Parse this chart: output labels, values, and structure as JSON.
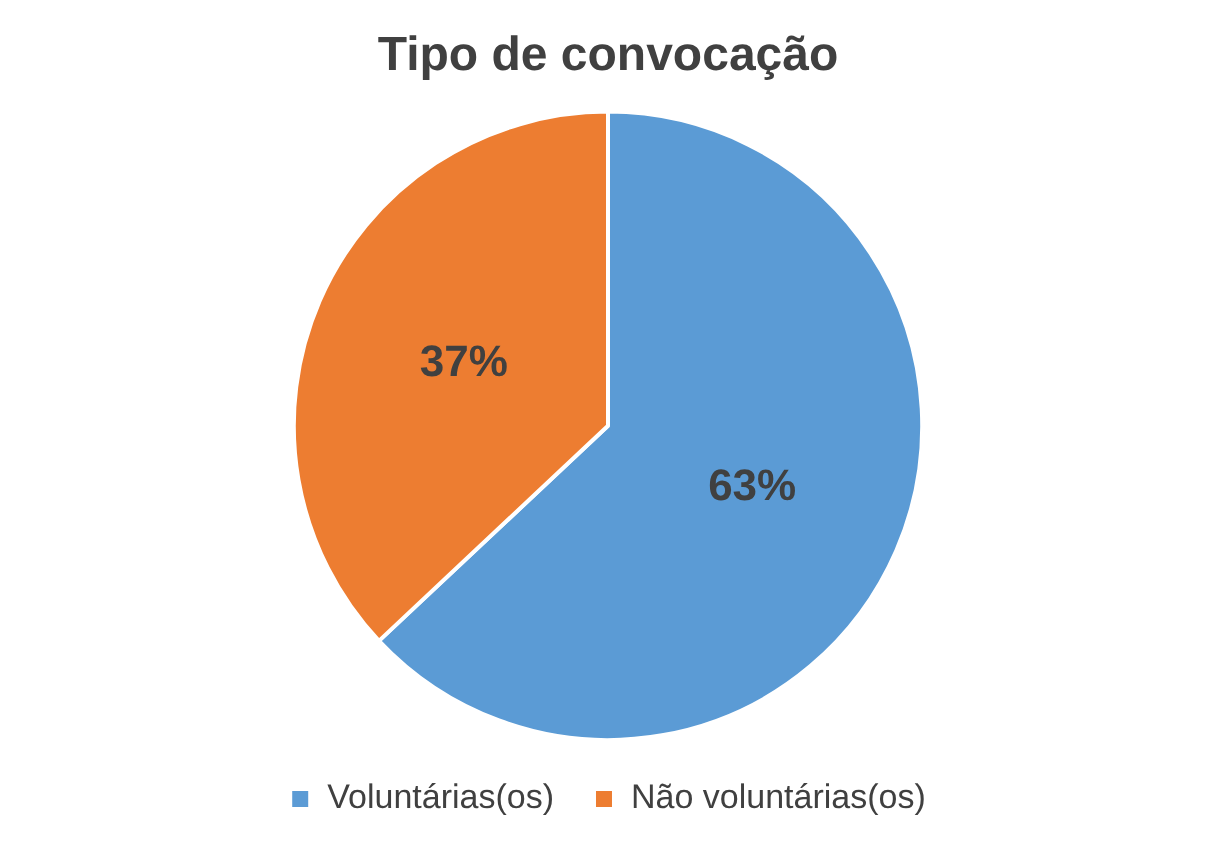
{
  "chart_data": {
    "type": "pie",
    "title": "Tipo de convocação",
    "categories": [
      "Voluntárias(os)",
      "Não voluntárias(os)"
    ],
    "values": [
      63,
      37
    ],
    "colors": [
      "#5b9bd5",
      "#ed7d31"
    ],
    "value_labels": [
      "63%",
      "37%"
    ],
    "legend": "bottom"
  }
}
